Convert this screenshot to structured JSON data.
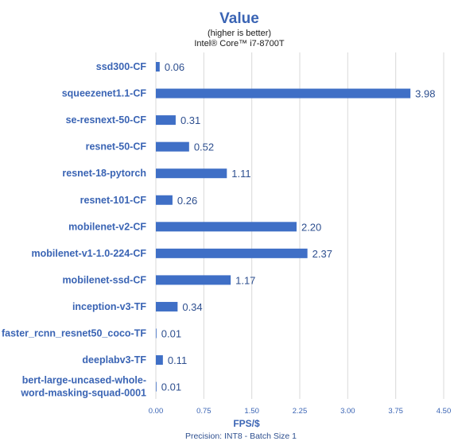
{
  "chart_data": {
    "type": "bar",
    "orientation": "horizontal",
    "title": "Value",
    "subtitle": "(higher is better)",
    "subtitle2": "Intel® Core™ i7-8700T",
    "xlabel": "FPS/$",
    "footnote": "Precision: INT8 - Batch Size 1",
    "xlim": [
      0,
      4.5
    ],
    "xticks": [
      "0.00",
      "0.75",
      "1.50",
      "2.25",
      "3.00",
      "3.75",
      "4.50"
    ],
    "grid": true,
    "legend": "none",
    "bar_color": "#3f6fc6",
    "categories": [
      [
        "ssd300-CF"
      ],
      [
        "squeezenet1.1-CF"
      ],
      [
        "se-resnext-50-CF"
      ],
      [
        "resnet-50-CF"
      ],
      [
        "resnet-18-pytorch"
      ],
      [
        "resnet-101-CF"
      ],
      [
        "mobilenet-v2-CF"
      ],
      [
        "mobilenet-v1-1.0-224-CF"
      ],
      [
        "mobilenet-ssd-CF"
      ],
      [
        "inception-v3-TF"
      ],
      [
        "faster_rcnn_resnet50_coco-TF"
      ],
      [
        "deeplabv3-TF"
      ],
      [
        "bert-large-uncased-whole-",
        "word-masking-squad-0001"
      ]
    ],
    "values": [
      0.06,
      3.98,
      0.31,
      0.52,
      1.11,
      0.26,
      2.2,
      2.37,
      1.17,
      0.34,
      0.01,
      0.11,
      0.01
    ],
    "value_labels": [
      "0.06",
      "3.98",
      "0.31",
      "0.52",
      "1.11",
      "0.26",
      "2.20",
      "2.37",
      "1.17",
      "0.34",
      "0.01",
      "0.11",
      "0.01"
    ]
  }
}
